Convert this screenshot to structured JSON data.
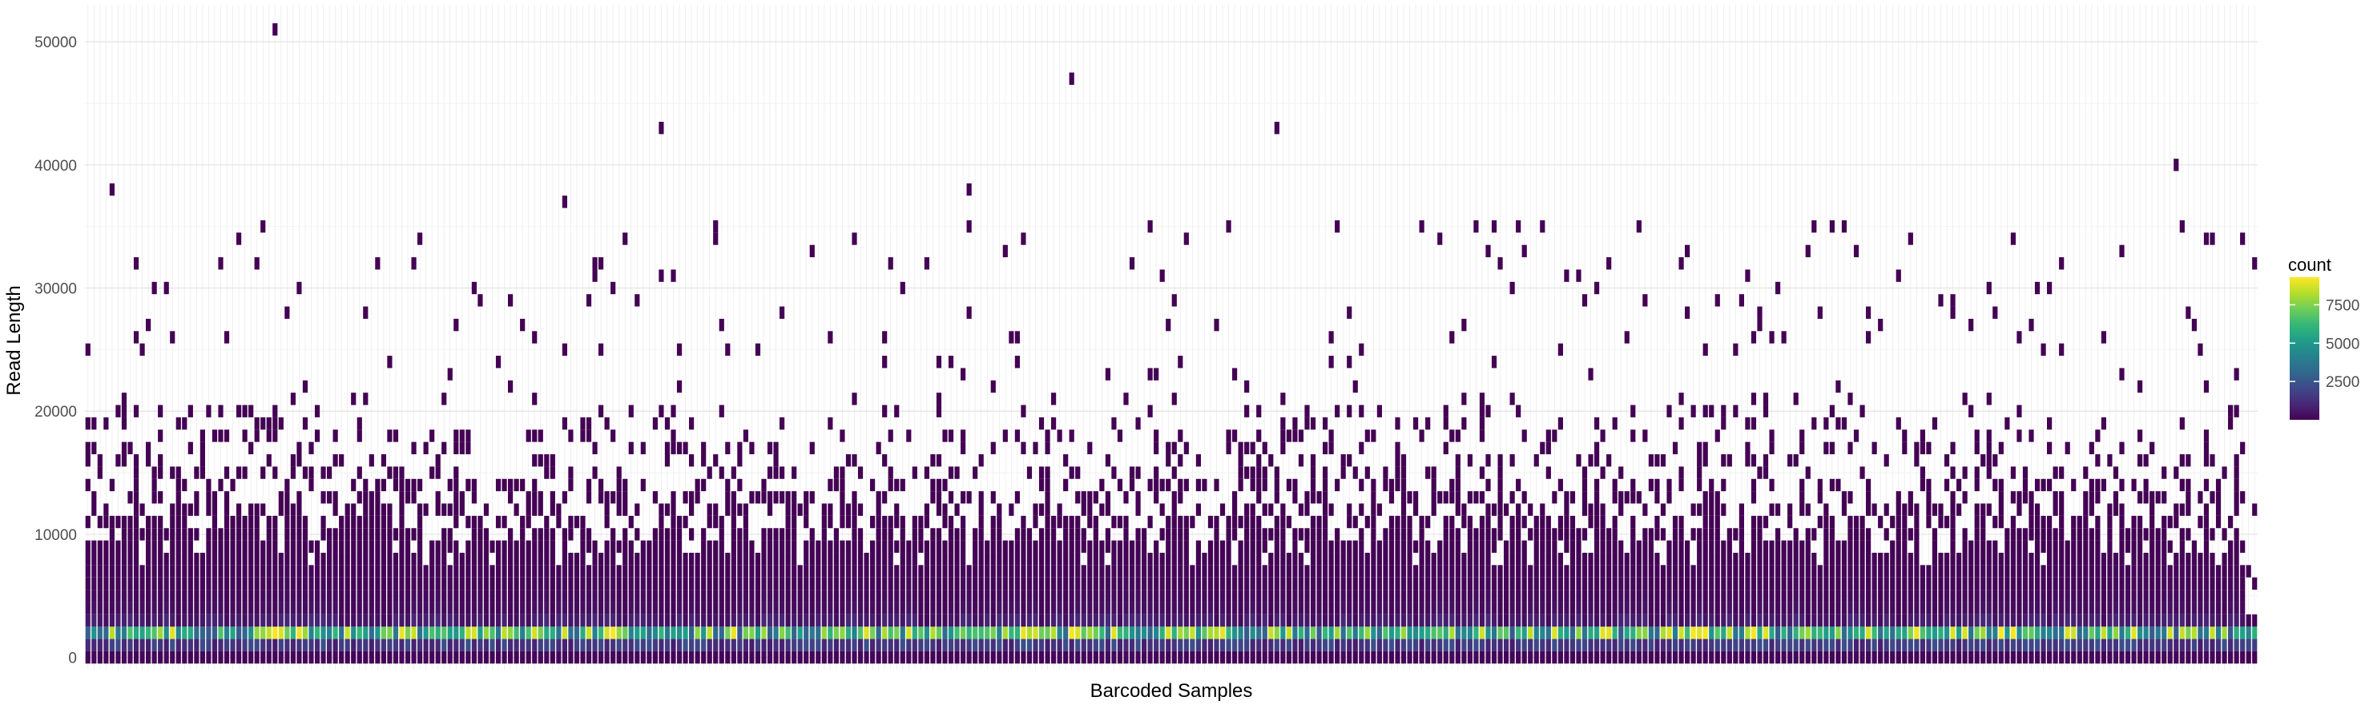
{
  "chart_data": {
    "type": "heatmap",
    "xlabel": "Barcoded Samples",
    "ylabel": "Read Length",
    "x_tick_labels": "none",
    "n_samples": 360,
    "bin_width": 1000,
    "ylim": [
      -1000,
      53000
    ],
    "y_ticks": [
      0,
      10000,
      20000,
      30000,
      40000,
      50000
    ],
    "y_tick_labels": [
      "0",
      "10000",
      "20000",
      "30000",
      "40000",
      "50000"
    ],
    "grid": true,
    "background": "minimal",
    "legend": {
      "title": "count",
      "position": "right",
      "ticks": [
        2500,
        5000,
        7500
      ],
      "tick_labels": [
        "2500",
        "5000",
        "7500"
      ],
      "range": [
        1,
        9300
      ]
    },
    "colors": {
      "scale": "viridis",
      "stops": [
        "#440154",
        "#482878",
        "#3e4989",
        "#31688e",
        "#26828e",
        "#1f9e89",
        "#35b779",
        "#6ece58",
        "#b5de2b",
        "#fde725"
      ]
    },
    "density_profile": {
      "bins_kb": [
        0,
        1,
        2,
        3,
        4,
        5,
        6,
        7,
        8,
        9,
        10,
        11,
        12,
        13,
        14,
        15,
        16,
        17,
        18,
        19,
        20
      ],
      "typical_count": [
        120,
        1400,
        5200,
        600,
        260,
        170,
        120,
        90,
        60,
        40,
        22,
        12,
        7,
        4,
        3,
        2,
        2,
        1,
        1,
        1,
        1
      ]
    },
    "notable_outliers": [
      {
        "sample": 31,
        "read_length": 50500
      },
      {
        "sample": 163,
        "read_length": 46500
      },
      {
        "sample": 95,
        "read_length": 42500
      },
      {
        "sample": 197,
        "read_length": 42500
      },
      {
        "sample": 346,
        "read_length": 39500
      },
      {
        "sample": 4,
        "read_length": 37500
      },
      {
        "sample": 146,
        "read_length": 37500
      },
      {
        "sample": 79,
        "read_length": 36500
      }
    ]
  }
}
